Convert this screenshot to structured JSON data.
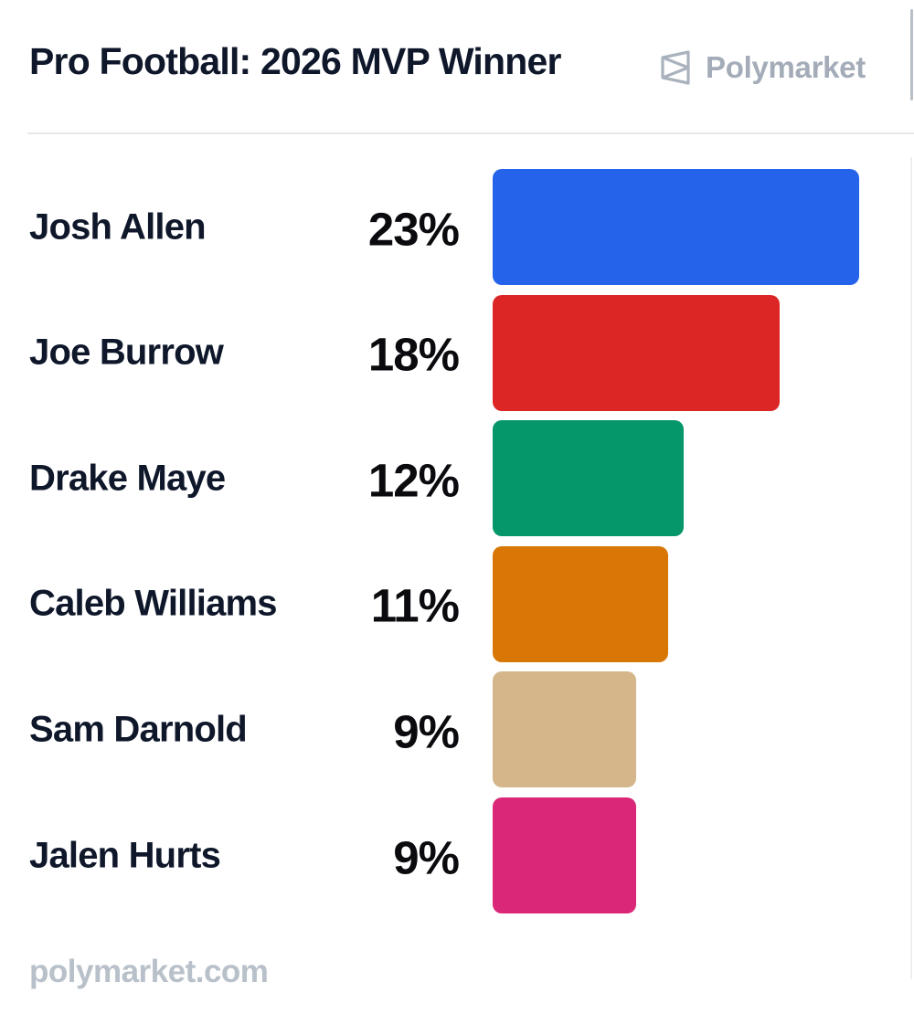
{
  "header": {
    "title": "Pro Football: 2026 MVP Winner",
    "brand": "Polymarket",
    "brand_icon": "polymarket-logo-icon"
  },
  "footer": {
    "site": "polymarket.com"
  },
  "colors": {
    "title": "#0f172a",
    "brand": "#a3acb8",
    "footer": "#b8c0c9"
  },
  "chart_data": {
    "type": "bar",
    "orientation": "horizontal",
    "title": "Pro Football: 2026 MVP Winner",
    "categories": [
      "Josh Allen",
      "Joe Burrow",
      "Drake Maye",
      "Caleb Williams",
      "Sam Darnold",
      "Jalen Hurts"
    ],
    "values": [
      23,
      18,
      12,
      11,
      9,
      9
    ],
    "value_labels": [
      "23%",
      "18%",
      "12%",
      "11%",
      "9%",
      "9%"
    ],
    "colors": [
      "#2563eb",
      "#dc2626",
      "#059669",
      "#d97706",
      "#d4b68a",
      "#db2777"
    ],
    "unit": "%",
    "grid": false,
    "legend": "none"
  }
}
